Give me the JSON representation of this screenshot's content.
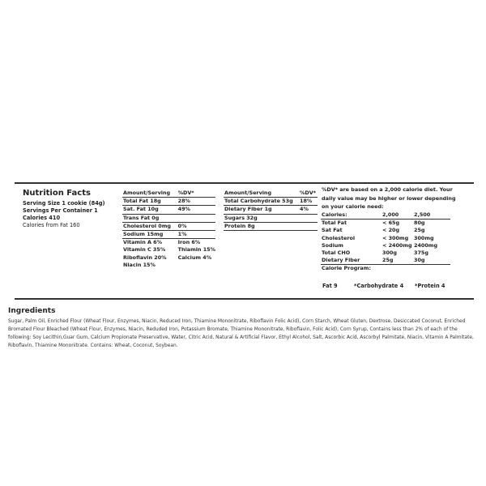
{
  "facts": {
    "title": "Nutrition Facts",
    "serving_size": "Serving Size 1 cookie (84g)",
    "servings": "Servings Per Container 1",
    "calories": "Calories 410",
    "calories_fat": "Calories from Fat 160"
  },
  "table1": {
    "header": [
      "Amount/Serving",
      "%DV*"
    ],
    "rows": [
      [
        "Total Fat 18g",
        "28%"
      ],
      [
        "Sat. Fat 10g",
        "49%"
      ],
      [
        "Trans Fat 0g",
        ""
      ],
      [
        "Cholesterol 0mg",
        "0%"
      ],
      [
        "Sodium 15mg",
        "1%"
      ]
    ],
    "vitamins": [
      [
        "Vitamin A 6%",
        "Iron 6%"
      ],
      [
        "Vitamin C 35%",
        "Thiamin 15%"
      ],
      [
        "Riboflavin 20%",
        "Calcium 4%"
      ],
      [
        "Niacin 15%",
        ""
      ]
    ]
  },
  "table2": {
    "header": [
      "Amount/Serving",
      "%DV*"
    ],
    "rows": [
      [
        "Total Carbohydrate 53g",
        "18%"
      ],
      [
        "Dietary Fiber 1g",
        "4%"
      ],
      [
        "Sugars 32g",
        ""
      ],
      [
        "Protein 8g",
        ""
      ]
    ]
  },
  "dv": {
    "note": "%DV* are based on a 2,000 calorie diet. Your daily value may be higher or lower depending on your calorie need:",
    "header": [
      "Calories:",
      "2,000",
      "2,500"
    ],
    "rows": [
      [
        "Total Fat",
        "< 65g",
        "80g"
      ],
      [
        "Sat Fat",
        "< 20g",
        "25g"
      ],
      [
        "Cholesterol",
        "< 300mg",
        "300mg"
      ],
      [
        "Sodium",
        "< 2400mg",
        "2400mg"
      ],
      [
        "Total CHO",
        "300g",
        "375g"
      ],
      [
        "Dietary Fiber",
        "25g",
        "30g"
      ]
    ],
    "program_label": "Calorie Program:",
    "program": [
      "Fat 9",
      "*Carbohydrate 4",
      "*Protein 4"
    ]
  },
  "ingredients": {
    "title": "Ingredients",
    "text": "Sugar, Palm Oil, Enriched Flour (Wheat Flour, Enzymes, Niacin, Reduced Iron, Thiamine Mononitrate, Riboflavin Folic Acid), Corn Starch, Wheat Gluten, Dextrose, Desiccated Coconut, Enriched Bromated Flour Bleached (Wheat Flour, Enzymes, Niacin, Reduded Iron, Potassium Bromate, Thiamine Mononitrate, Riboflavin, Folic Acid), Corn Syrup, Contains less than 2% of each of the following: Soy Lecithin,Guar Gum, Calcium Propionate Preservative, Water, Citric Acid, Natural & Artificial Flavor, Ethyl Alcohol, Salt, Ascorbic Acid, Ascorbyl Palmitate, Niacin, Vitamin A Palmitate, Riboflavin, Thiamine Mononitrate. Contains: Wheat, Coconut, Soybean."
  }
}
